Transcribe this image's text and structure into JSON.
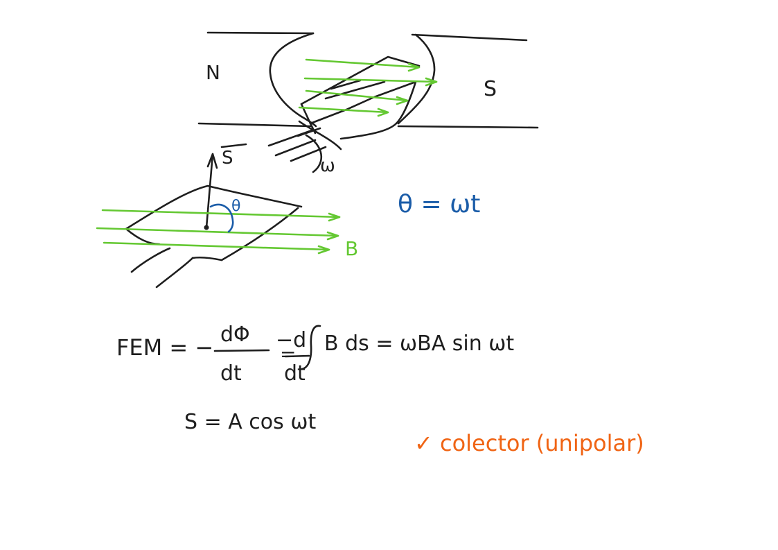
{
  "colors": {
    "background": "#ffffff",
    "ink": "#1e1e1e",
    "field_lines": "#64c832",
    "angle": "#1a5ca8",
    "note": "#f06414"
  },
  "magnet": {
    "north_label": "N",
    "south_label": "S",
    "omega_label": "ω"
  },
  "loop": {
    "surface_vector_label": "S",
    "angle_label": "θ",
    "field_label": "B"
  },
  "angle_relation": "θ = ωt",
  "formula": {
    "lhs": "FEM = −",
    "frac1_num": "dΦ",
    "frac1_den": "dt",
    "eq": "=",
    "frac2_num": "−d",
    "frac2_den": "dt",
    "integrand": "B ds = ωBA sin ωt"
  },
  "surface_relation": "S = A cos ωt",
  "note": "✓ colector (unipolar)"
}
